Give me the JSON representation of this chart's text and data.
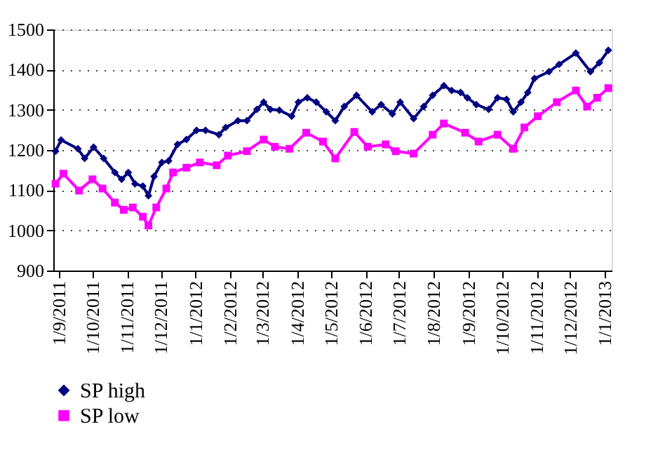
{
  "chart_data": {
    "type": "line",
    "legend": "bottom",
    "grid": "y",
    "line_style": "solid",
    "ylim": [
      900,
      1500
    ],
    "yticks": [
      900,
      1000,
      1100,
      1200,
      1300,
      1400,
      1500
    ],
    "xlim": [
      "2011-08-27",
      "2013-01-07"
    ],
    "xticks": [
      {
        "value": "2011-09-01",
        "label": "1/9/2011"
      },
      {
        "value": "2011-10-01",
        "label": "1/10/2011"
      },
      {
        "value": "2011-11-01",
        "label": "1/11/2011"
      },
      {
        "value": "2011-12-01",
        "label": "1/12/2011"
      },
      {
        "value": "2012-01-01",
        "label": "1/1/2012"
      },
      {
        "value": "2012-02-01",
        "label": "1/2/2012"
      },
      {
        "value": "2012-03-01",
        "label": "1/3/2012"
      },
      {
        "value": "2012-04-01",
        "label": "1/4/2012"
      },
      {
        "value": "2012-05-01",
        "label": "1/5/2012"
      },
      {
        "value": "2012-06-01",
        "label": "1/6/2012"
      },
      {
        "value": "2012-07-01",
        "label": "1/7/2012"
      },
      {
        "value": "2012-08-01",
        "label": "1/8/2012"
      },
      {
        "value": "2012-09-01",
        "label": "1/9/2012"
      },
      {
        "value": "2012-10-01",
        "label": "1/10/2012"
      },
      {
        "value": "2012-11-01",
        "label": "1/11/2012"
      },
      {
        "value": "2012-12-01",
        "label": "1/12/2012"
      },
      {
        "value": "2013-01-01",
        "label": "1/1/2013"
      }
    ],
    "series": [
      {
        "name": "SP high",
        "color": "#000080",
        "marker": "diamond",
        "x": [
          "2011-08-29",
          "2011-09-03",
          "2011-09-18",
          "2011-09-24",
          "2011-10-02",
          "2011-10-11",
          "2011-10-21",
          "2011-10-27",
          "2011-11-02",
          "2011-11-08",
          "2011-11-15",
          "2011-11-20",
          "2011-11-25",
          "2011-12-02",
          "2011-12-08",
          "2011-12-16",
          "2011-12-24",
          "2012-01-02",
          "2012-01-10",
          "2012-01-22",
          "2012-01-28",
          "2012-02-08",
          "2012-02-16",
          "2012-02-25",
          "2012-03-02",
          "2012-03-08",
          "2012-03-16",
          "2012-03-27",
          "2012-04-02",
          "2012-04-10",
          "2012-04-18",
          "2012-04-27",
          "2012-05-05",
          "2012-05-13",
          "2012-05-24",
          "2012-06-07",
          "2012-06-15",
          "2012-06-25",
          "2012-07-02",
          "2012-07-14",
          "2012-07-23",
          "2012-07-31",
          "2012-08-10",
          "2012-08-17",
          "2012-08-25",
          "2012-08-31",
          "2012-09-08",
          "2012-09-19",
          "2012-09-27",
          "2012-10-05",
          "2012-10-11",
          "2012-10-18",
          "2012-10-24",
          "2012-10-30",
          "2012-11-12",
          "2012-11-21",
          "2012-12-06",
          "2012-12-19",
          "2012-12-27",
          "2013-01-04"
        ],
        "values": [
          1197,
          1225,
          1203,
          1179,
          1207,
          1179,
          1144,
          1127,
          1144,
          1116,
          1110,
          1086,
          1134,
          1169,
          1173,
          1214,
          1226,
          1249,
          1249,
          1238,
          1256,
          1273,
          1273,
          1301,
          1319,
          1301,
          1299,
          1284,
          1319,
          1330,
          1319,
          1295,
          1273,
          1308,
          1336,
          1295,
          1313,
          1290,
          1319,
          1278,
          1308,
          1336,
          1360,
          1348,
          1343,
          1330,
          1313,
          1301,
          1330,
          1326,
          1295,
          1319,
          1343,
          1378,
          1395,
          1413,
          1441,
          1395,
          1417,
          1448
        ]
      },
      {
        "name": "SP low",
        "color": "#ff00ff",
        "marker": "square",
        "x": [
          "2011-08-29",
          "2011-09-05",
          "2011-09-19",
          "2011-10-01",
          "2011-10-10",
          "2011-10-21",
          "2011-10-29",
          "2011-11-06",
          "2011-11-15",
          "2011-11-20",
          "2011-11-27",
          "2011-12-06",
          "2011-12-12",
          "2011-12-24",
          "2012-01-05",
          "2012-01-20",
          "2012-01-30",
          "2012-02-16",
          "2012-03-02",
          "2012-03-12",
          "2012-03-25",
          "2012-04-09",
          "2012-04-24",
          "2012-05-05",
          "2012-05-22",
          "2012-06-03",
          "2012-06-19",
          "2012-06-28",
          "2012-07-14",
          "2012-07-31",
          "2012-08-10",
          "2012-08-29",
          "2012-09-10",
          "2012-09-27",
          "2012-10-11",
          "2012-10-21",
          "2012-11-02",
          "2012-11-19",
          "2012-12-06",
          "2012-12-16",
          "2012-12-25",
          "2013-01-04"
        ],
        "values": [
          1116,
          1141,
          1099,
          1127,
          1104,
          1069,
          1051,
          1057,
          1034,
          1012,
          1057,
          1104,
          1144,
          1156,
          1169,
          1162,
          1186,
          1197,
          1226,
          1208,
          1203,
          1243,
          1221,
          1179,
          1245,
          1208,
          1214,
          1197,
          1191,
          1238,
          1266,
          1243,
          1221,
          1238,
          1203,
          1256,
          1284,
          1319,
          1348,
          1308,
          1330,
          1354
        ]
      }
    ]
  }
}
